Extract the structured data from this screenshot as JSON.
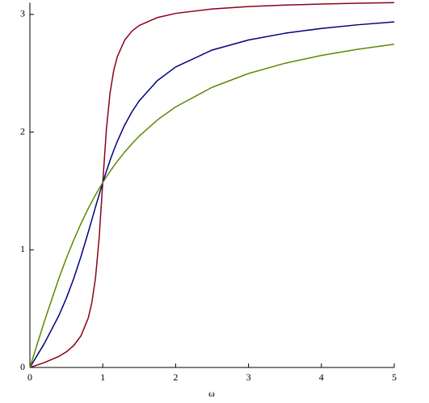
{
  "chart_data": {
    "type": "line",
    "x_label": "ω",
    "x": [
      0,
      0.2,
      0.4,
      0.5,
      0.6,
      0.7,
      0.8,
      0.85,
      0.9,
      0.95,
      1,
      1.05,
      1.1,
      1.15,
      1.2,
      1.3,
      1.4,
      1.5,
      1.75,
      2,
      2.5,
      3,
      3.5,
      4,
      4.5,
      5
    ],
    "series": [
      {
        "color": "#8b0018",
        "values": [
          0,
          0.0416,
          0.095,
          0.1326,
          0.1853,
          0.2679,
          0.4182,
          0.5498,
          0.7587,
          1.0965,
          1.5708,
          2.0247,
          2.333,
          2.5223,
          2.642,
          2.781,
          2.8578,
          2.9061,
          2.9735,
          3.009,
          3.0466,
          3.0667,
          3.0795,
          3.0883,
          3.0948,
          3.1
        ]
      },
      {
        "color": "#00007f",
        "values": [
          0,
          0.2054,
          0.4444,
          0.588,
          0.7532,
          0.9411,
          1.1478,
          1.2547,
          1.3628,
          1.4685,
          1.5708,
          1.6681,
          1.7594,
          1.8444,
          1.9221,
          2.059,
          2.1721,
          2.2655,
          2.4383,
          2.5536,
          2.6972,
          2.7828,
          2.84,
          2.881,
          2.912,
          2.9362
        ]
      },
      {
        "color": "#5b8a00",
        "values": [
          0,
          0.3948,
          0.761,
          0.9273,
          1.0808,
          1.2215,
          1.3495,
          1.409,
          1.4656,
          1.5196,
          1.5708,
          1.6196,
          1.666,
          1.71,
          1.7522,
          1.8302,
          1.901,
          1.9656,
          2.1034,
          2.2143,
          2.3806,
          2.4981,
          2.585,
          2.6516,
          2.7042,
          2.7468
        ]
      }
    ],
    "xlim": [
      0,
      5
    ],
    "xticks": [
      0,
      1,
      2,
      3,
      4,
      5
    ],
    "ylim": [
      0,
      3.1
    ],
    "yticks": [
      0,
      1,
      2,
      3
    ]
  }
}
